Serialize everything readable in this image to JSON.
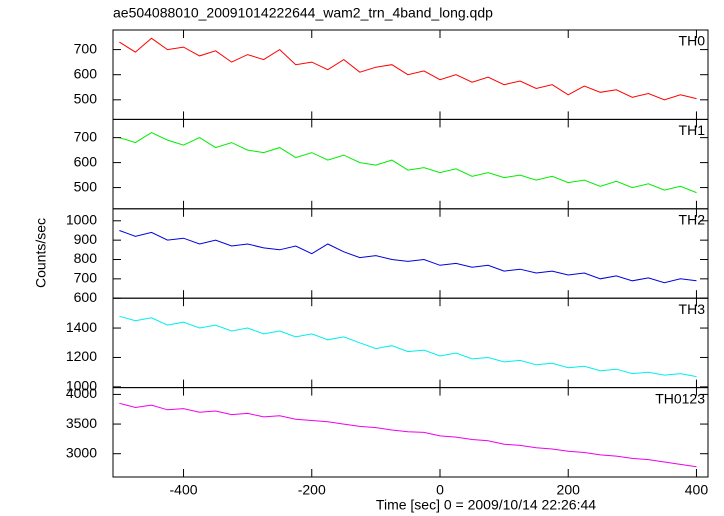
{
  "chart_data": {
    "type": "line",
    "title": "ae504088010_20091014222644_wam2_trn_4band_long.qdp",
    "xlabel": "Time [sec] 0 = 2009/10/14 22:26:44",
    "ylabel": "Counts/sec",
    "x": [
      -500,
      -475,
      -450,
      -425,
      -400,
      -375,
      -350,
      -325,
      -300,
      -275,
      -250,
      -225,
      -200,
      -175,
      -150,
      -125,
      -100,
      -75,
      -50,
      -25,
      0,
      25,
      50,
      75,
      100,
      125,
      150,
      175,
      200,
      225,
      250,
      275,
      300,
      325,
      350,
      375,
      400
    ],
    "xlim": [
      -510,
      418
    ],
    "xticks": [
      -400,
      -200,
      0,
      200,
      400
    ],
    "series": [
      {
        "name": "TH0",
        "color": "#ff0000",
        "ylim": [
          422,
          778
        ],
        "yticks": [
          500,
          600,
          700
        ],
        "values": [
          730,
          690,
          745,
          700,
          710,
          675,
          695,
          650,
          680,
          660,
          700,
          640,
          650,
          620,
          660,
          610,
          630,
          640,
          600,
          615,
          580,
          600,
          570,
          590,
          560,
          575,
          545,
          560,
          520,
          555,
          530,
          540,
          510,
          525,
          500,
          520,
          505
        ]
      },
      {
        "name": "TH1",
        "color": "#00ee00",
        "ylim": [
          415,
          773
        ],
        "yticks": [
          500,
          600,
          700
        ],
        "values": [
          700,
          680,
          720,
          690,
          670,
          700,
          660,
          680,
          650,
          640,
          660,
          620,
          640,
          610,
          630,
          600,
          590,
          610,
          570,
          580,
          560,
          575,
          545,
          560,
          540,
          550,
          530,
          545,
          520,
          530,
          505,
          525,
          500,
          515,
          490,
          505,
          480
        ]
      },
      {
        "name": "TH2",
        "color": "#0000dd",
        "ylim": [
          600,
          1062
        ],
        "yticks": [
          600,
          700,
          800,
          900,
          1000
        ],
        "values": [
          950,
          920,
          940,
          900,
          910,
          880,
          900,
          870,
          880,
          860,
          850,
          870,
          830,
          880,
          840,
          810,
          820,
          800,
          790,
          800,
          770,
          780,
          760,
          770,
          740,
          750,
          730,
          740,
          720,
          730,
          700,
          715,
          690,
          705,
          680,
          700,
          690
        ]
      },
      {
        "name": "TH3",
        "color": "#00eeee",
        "ylim": [
          995,
          1603
        ],
        "yticks": [
          1000,
          1200,
          1400
        ],
        "values": [
          1480,
          1450,
          1470,
          1420,
          1440,
          1400,
          1420,
          1380,
          1400,
          1360,
          1380,
          1340,
          1360,
          1320,
          1340,
          1300,
          1260,
          1280,
          1240,
          1250,
          1210,
          1230,
          1190,
          1200,
          1170,
          1180,
          1150,
          1160,
          1130,
          1140,
          1110,
          1120,
          1090,
          1100,
          1080,
          1090,
          1070
        ]
      },
      {
        "name": "TH0123",
        "color": "#ee00ee",
        "ylim": [
          2607,
          4115
        ],
        "yticks": [
          3000,
          3500,
          4000
        ],
        "values": [
          3850,
          3780,
          3820,
          3740,
          3760,
          3700,
          3720,
          3660,
          3680,
          3620,
          3640,
          3580,
          3560,
          3540,
          3500,
          3460,
          3440,
          3400,
          3370,
          3360,
          3300,
          3280,
          3240,
          3220,
          3160,
          3140,
          3100,
          3080,
          3040,
          3020,
          2980,
          2960,
          2920,
          2900,
          2860,
          2820,
          2780
        ]
      }
    ]
  }
}
